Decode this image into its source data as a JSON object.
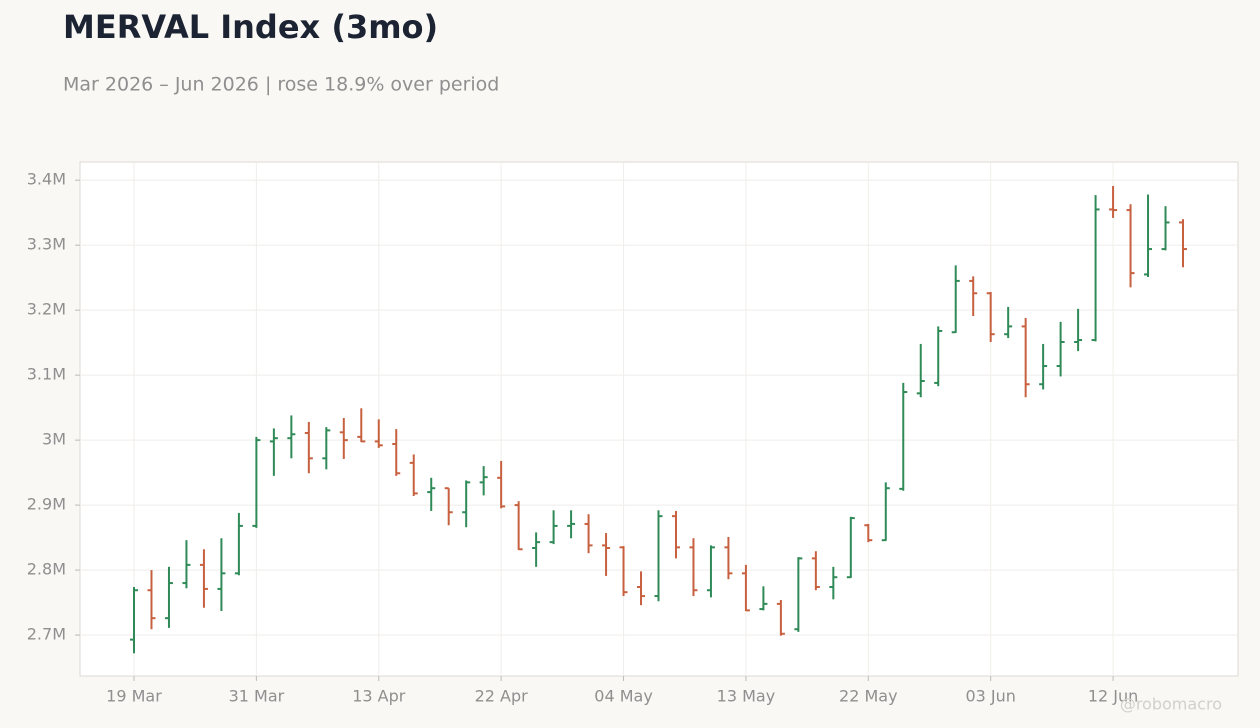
{
  "chart_data": {
    "type": "ohlc",
    "title": "MERVAL Index (3mo)",
    "subtitle": "Mar 2026 – Jun 2026 | rose 18.9% over period",
    "watermark": "@robomacro",
    "categories": [
      "19 Mar",
      null,
      null,
      null,
      null,
      null,
      null,
      "31 Mar",
      null,
      null,
      null,
      null,
      null,
      null,
      "13 Apr",
      null,
      null,
      null,
      null,
      null,
      null,
      "22 Apr",
      null,
      null,
      null,
      null,
      null,
      null,
      "04 May",
      null,
      null,
      null,
      null,
      null,
      null,
      "13 May",
      null,
      null,
      null,
      null,
      null,
      null,
      "22 May",
      null,
      null,
      null,
      null,
      null,
      null,
      "03 Jun",
      null,
      null,
      null,
      null,
      null,
      null,
      "12 Jun",
      null,
      null,
      null,
      null
    ],
    "open": [
      2693000,
      2769000,
      2726000,
      2780000,
      2808000,
      2771000,
      2795000,
      2868000,
      2998000,
      3003000,
      3011000,
      2972000,
      3012000,
      3005000,
      2998000,
      2994000,
      2965000,
      2920000,
      2926000,
      2889000,
      2935000,
      2942000,
      2900000,
      2834000,
      2843000,
      2868000,
      2871000,
      2838000,
      2835000,
      2774000,
      2760000,
      2883000,
      2835000,
      2769000,
      2835000,
      2795000,
      2740000,
      2748000,
      2709000,
      2818000,
      2774000,
      2789000,
      2869000,
      2846000,
      2925000,
      3072000,
      3088000,
      3166000,
      3245000,
      3226000,
      3163000,
      3175000,
      3086000,
      3114000,
      3151000,
      3154000,
      3355000,
      3354000,
      3255000,
      3294000,
      3335000
    ],
    "high": [
      2774000,
      2800000,
      2805000,
      2846000,
      2832000,
      2849000,
      2888000,
      3005000,
      3018000,
      3038000,
      3028000,
      3020000,
      3034000,
      3049000,
      3032000,
      3017000,
      2978000,
      2942000,
      2926000,
      2938000,
      2960000,
      2968000,
      2906000,
      2858000,
      2892000,
      2892000,
      2886000,
      2857000,
      2837000,
      2798000,
      2892000,
      2891000,
      2849000,
      2838000,
      2851000,
      2808000,
      2775000,
      2754000,
      2820000,
      2829000,
      2805000,
      2882000,
      2871000,
      2935000,
      3088000,
      3148000,
      3175000,
      3269000,
      3252000,
      3228000,
      3205000,
      3188000,
      3148000,
      3182000,
      3202000,
      3377000,
      3391000,
      3363000,
      3378000,
      3360000,
      3340000
    ],
    "low": [
      2672000,
      2709000,
      2711000,
      2772000,
      2742000,
      2737000,
      2792000,
      2865000,
      2945000,
      2972000,
      2949000,
      2955000,
      2971000,
      2997000,
      2988000,
      2945000,
      2914000,
      2891000,
      2869000,
      2866000,
      2915000,
      2895000,
      2831000,
      2805000,
      2840000,
      2849000,
      2826000,
      2791000,
      2760000,
      2746000,
      2752000,
      2818000,
      2760000,
      2758000,
      2786000,
      2737000,
      2738000,
      2699000,
      2705000,
      2769000,
      2755000,
      2788000,
      2843000,
      2845000,
      2922000,
      3066000,
      3083000,
      3165000,
      3191000,
      3151000,
      3157000,
      3066000,
      3078000,
      3098000,
      3137000,
      3152000,
      3342000,
      3235000,
      3251000,
      3292000,
      3266000
    ],
    "close": [
      2769000,
      2726000,
      2780000,
      2808000,
      2771000,
      2795000,
      2868000,
      3000000,
      3003000,
      3009000,
      2972000,
      3015000,
      3000000,
      2998000,
      2992000,
      2949000,
      2918000,
      2926000,
      2889000,
      2935000,
      2943000,
      2898000,
      2832000,
      2843000,
      2868000,
      2871000,
      2838000,
      2834000,
      2766000,
      2760000,
      2883000,
      2835000,
      2769000,
      2835000,
      2795000,
      2738000,
      2748000,
      2702000,
      2818000,
      2774000,
      2789000,
      2880000,
      2846000,
      2926000,
      3074000,
      3091000,
      3168000,
      3245000,
      3226000,
      3163000,
      3175000,
      3086000,
      3114000,
      3151000,
      3154000,
      3355000,
      3354000,
      3257000,
      3294000,
      3335000,
      3294000
    ],
    "up_color": "#2f8a57",
    "down_color": "#c7603f",
    "ylim": [
      2637000,
      3428000
    ],
    "yticks": [
      {
        "value": 2700000,
        "label": "2.7M"
      },
      {
        "value": 2800000,
        "label": "2.8M"
      },
      {
        "value": 2900000,
        "label": "2.9M"
      },
      {
        "value": 3000000,
        "label": "3M"
      },
      {
        "value": 3100000,
        "label": "3.1M"
      },
      {
        "value": 3200000,
        "label": "3.2M"
      },
      {
        "value": 3300000,
        "label": "3.3M"
      },
      {
        "value": 3400000,
        "label": "3.4M"
      }
    ],
    "grid": true
  }
}
